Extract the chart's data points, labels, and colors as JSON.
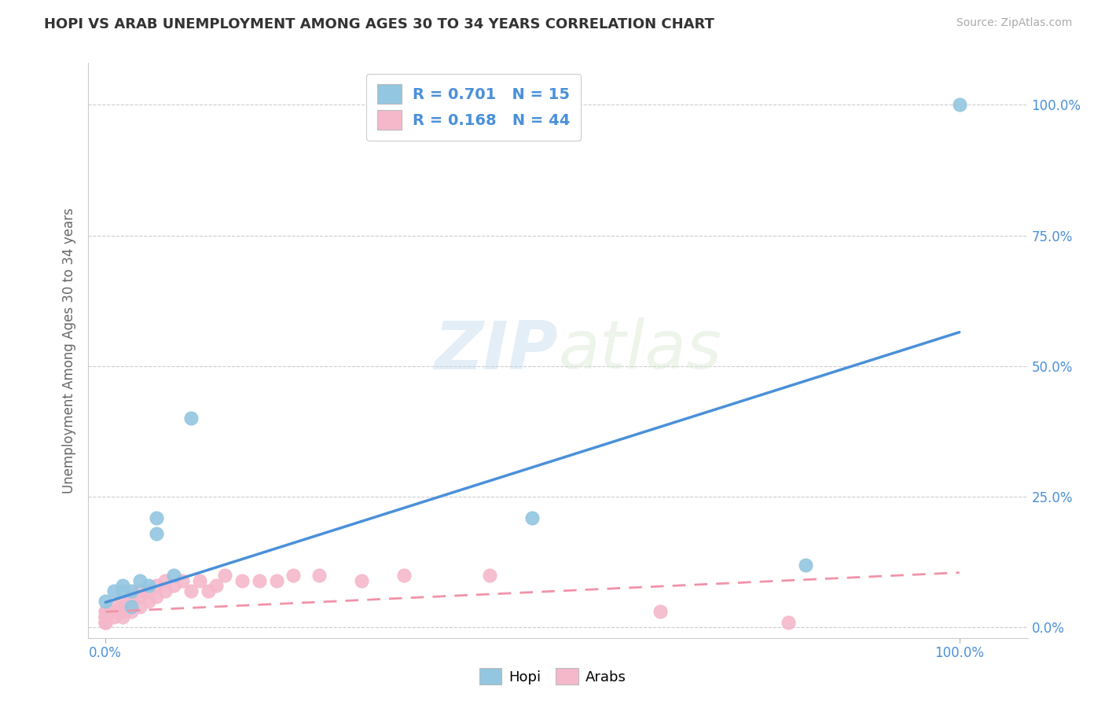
{
  "title": "HOPI VS ARAB UNEMPLOYMENT AMONG AGES 30 TO 34 YEARS CORRELATION CHART",
  "source": "Source: ZipAtlas.com",
  "ylabel": "Unemployment Among Ages 30 to 34 years",
  "watermark_zip": "ZIP",
  "watermark_atlas": "atlas",
  "legend_hopi": "Hopi",
  "legend_arabs": "Arabs",
  "hopi_R": "0.701",
  "hopi_N": "15",
  "arab_R": "0.168",
  "arab_N": "44",
  "hopi_color": "#93c6e0",
  "arab_color": "#f5b8cb",
  "hopi_line_color": "#4a90d9",
  "arab_line_color": "#f093a8",
  "hopi_scatter_color": "#93c6e0",
  "arab_scatter_color": "#f5b8cb",
  "hopi_points_x": [
    0.0,
    0.01,
    0.02,
    0.02,
    0.03,
    0.03,
    0.04,
    0.05,
    0.06,
    0.06,
    0.08,
    0.1,
    0.82,
    1.0,
    0.5
  ],
  "hopi_points_y": [
    0.05,
    0.07,
    0.07,
    0.08,
    0.04,
    0.07,
    0.09,
    0.08,
    0.18,
    0.21,
    0.1,
    0.4,
    0.12,
    1.0,
    0.21
  ],
  "arab_points_x": [
    0.0,
    0.0,
    0.0,
    0.0,
    0.0,
    0.0,
    0.0,
    0.0,
    0.01,
    0.01,
    0.01,
    0.02,
    0.02,
    0.02,
    0.02,
    0.03,
    0.03,
    0.03,
    0.04,
    0.04,
    0.04,
    0.05,
    0.05,
    0.06,
    0.06,
    0.07,
    0.07,
    0.08,
    0.09,
    0.1,
    0.11,
    0.12,
    0.13,
    0.14,
    0.16,
    0.18,
    0.2,
    0.22,
    0.25,
    0.3,
    0.35,
    0.45,
    0.65,
    0.8
  ],
  "arab_points_y": [
    0.01,
    0.01,
    0.01,
    0.02,
    0.02,
    0.02,
    0.03,
    0.03,
    0.02,
    0.03,
    0.04,
    0.02,
    0.03,
    0.04,
    0.05,
    0.03,
    0.04,
    0.06,
    0.04,
    0.06,
    0.07,
    0.05,
    0.07,
    0.06,
    0.08,
    0.07,
    0.09,
    0.08,
    0.09,
    0.07,
    0.09,
    0.07,
    0.08,
    0.1,
    0.09,
    0.09,
    0.09,
    0.1,
    0.1,
    0.09,
    0.1,
    0.1,
    0.03,
    0.01
  ],
  "hopi_line_x": [
    0.0,
    1.0
  ],
  "hopi_line_y": [
    0.048,
    0.565
  ],
  "arab_line_x": [
    0.0,
    1.0
  ],
  "arab_line_y": [
    0.03,
    0.105
  ],
  "ylim": [
    -0.02,
    1.08
  ],
  "xlim": [
    -0.02,
    1.08
  ],
  "ytick_labels": [
    "0.0%",
    "25.0%",
    "50.0%",
    "75.0%",
    "100.0%"
  ],
  "ytick_values": [
    0.0,
    0.25,
    0.5,
    0.75,
    1.0
  ],
  "background_color": "#ffffff",
  "grid_color": "#cccccc",
  "title_color": "#333333",
  "source_color": "#aaaaaa",
  "axis_label_color": "#666666"
}
